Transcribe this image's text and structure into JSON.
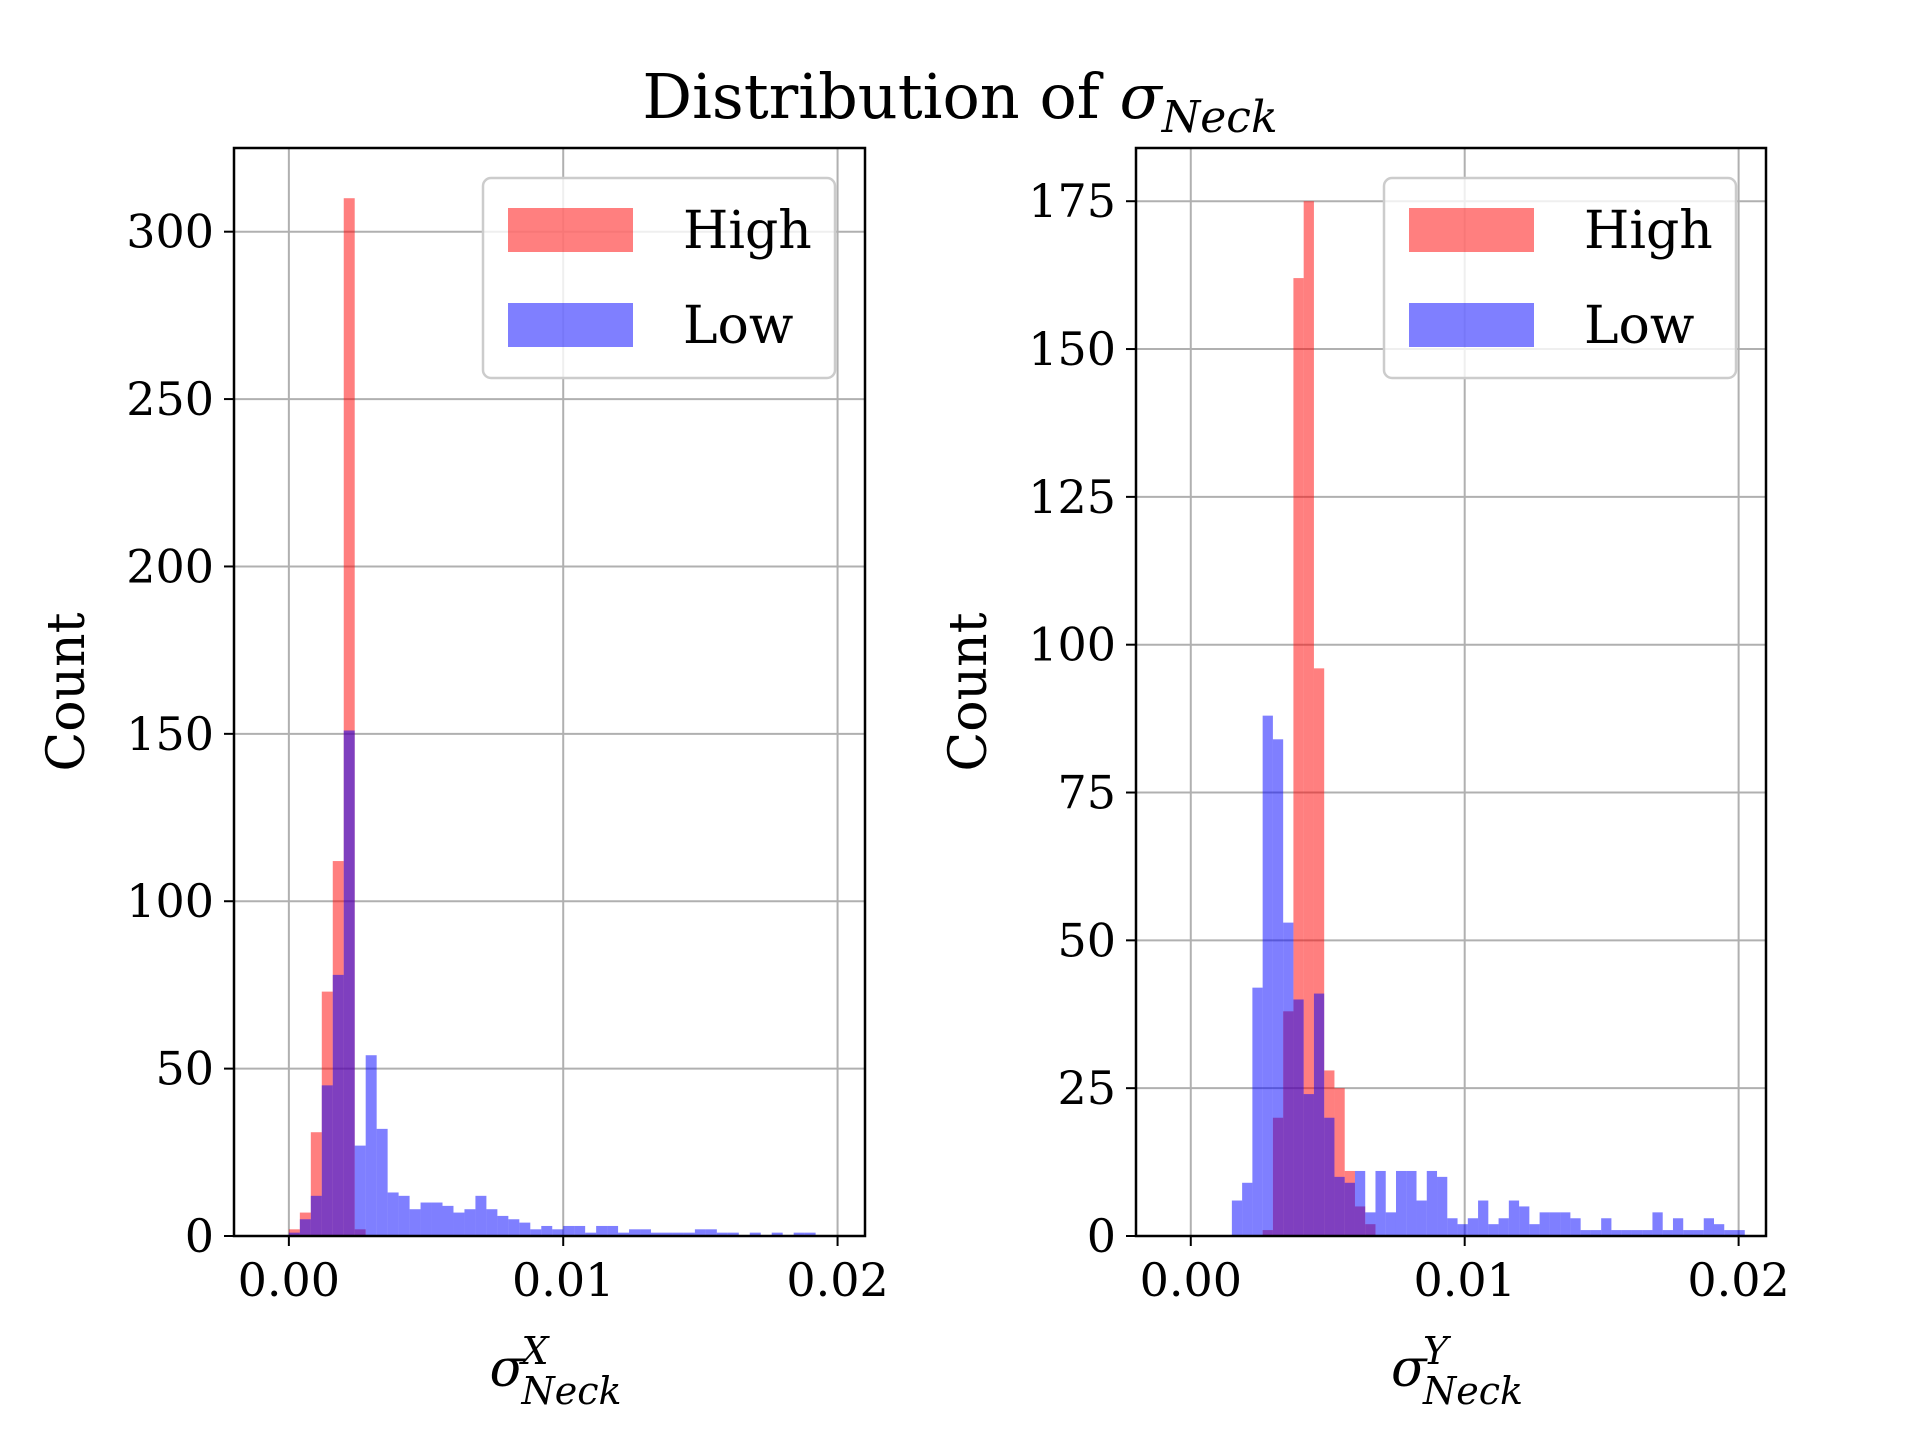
{
  "figure": {
    "title_prefix": "Distribution of ",
    "title_symbol": "σ",
    "title_subscript": "Neck"
  },
  "colors": {
    "high": "#ff0000",
    "low": "#0000ff",
    "bar_alpha": 0.5,
    "grid": "#b0b0b0"
  },
  "chart_data": [
    {
      "type": "bar",
      "subtype": "histogram",
      "title": "",
      "xlabel": "σ^X_Neck",
      "xlabel_symbol": "σ",
      "xlabel_sup": "X",
      "xlabel_sub": "Neck",
      "ylabel": "Count",
      "xlim": [
        -0.002,
        0.021
      ],
      "ylim": [
        0,
        325
      ],
      "xticks": [
        0.0,
        0.01,
        0.02
      ],
      "xtick_labels": [
        "0.00",
        "0.01",
        "0.02"
      ],
      "yticks": [
        0,
        50,
        100,
        150,
        200,
        250,
        300
      ],
      "ytick_labels": [
        "0",
        "50",
        "100",
        "150",
        "200",
        "250",
        "300"
      ],
      "grid": true,
      "legend": "upper right",
      "bin_edges_start": 0.0,
      "bin_width": 0.0004,
      "series": [
        {
          "name": "High",
          "values": [
            2,
            7,
            31,
            73,
            112,
            310,
            2,
            0,
            0,
            0,
            0,
            0,
            0,
            0,
            0,
            0,
            0,
            0,
            0,
            0,
            0,
            0,
            0,
            0,
            0,
            0,
            0,
            0,
            0,
            0,
            0,
            0,
            0,
            0,
            0,
            0,
            0,
            0,
            0,
            0,
            0,
            0,
            0,
            0,
            0,
            0,
            0,
            0,
            0,
            0
          ]
        },
        {
          "name": "Low",
          "values": [
            1,
            5,
            12,
            45,
            78,
            151,
            27,
            54,
            32,
            13,
            12,
            8,
            10,
            10,
            9,
            7,
            8,
            12,
            8,
            6,
            5,
            4,
            2,
            3,
            2,
            3,
            3,
            1,
            3,
            3,
            1,
            2,
            2,
            1,
            1,
            1,
            1,
            2,
            2,
            1,
            1,
            0,
            1,
            0,
            1,
            0,
            1,
            1,
            0,
            0
          ]
        }
      ]
    },
    {
      "type": "bar",
      "subtype": "histogram",
      "title": "",
      "xlabel": "σ^Y_Neck",
      "xlabel_symbol": "σ",
      "xlabel_sup": "Y",
      "xlabel_sub": "Neck",
      "ylabel": "Count",
      "xlim": [
        -0.002,
        0.021
      ],
      "ylim": [
        0,
        184
      ],
      "xticks": [
        0.0,
        0.01,
        0.02
      ],
      "xtick_labels": [
        "0.00",
        "0.01",
        "0.02"
      ],
      "yticks": [
        0,
        25,
        50,
        75,
        100,
        125,
        150,
        175
      ],
      "ytick_labels": [
        "0",
        "25",
        "50",
        "75",
        "100",
        "125",
        "150",
        "175"
      ],
      "grid": true,
      "legend": "upper right",
      "bin_edges_start": 0.0015,
      "bin_width": 0.0003745,
      "series": [
        {
          "name": "High",
          "values": [
            0,
            0,
            0,
            1,
            20,
            38,
            162,
            175,
            96,
            28,
            25,
            11,
            5,
            2,
            0,
            0,
            0,
            0,
            0,
            0,
            0,
            0,
            0,
            0,
            0,
            0,
            0,
            0,
            0,
            0,
            0,
            0,
            0,
            0,
            0,
            0,
            0,
            0,
            0,
            0,
            0,
            0,
            0,
            0,
            0,
            0,
            0,
            0,
            0,
            0
          ]
        },
        {
          "name": "Low",
          "values": [
            6,
            9,
            42,
            88,
            84,
            53,
            40,
            24,
            41,
            20,
            10,
            9,
            11,
            4,
            11,
            4,
            11,
            11,
            6,
            11,
            10,
            3,
            2,
            3,
            6,
            2,
            3,
            6,
            5,
            2,
            4,
            4,
            4,
            3,
            1,
            1,
            3,
            1,
            1,
            1,
            1,
            4,
            1,
            3,
            1,
            1,
            3,
            2,
            1,
            1
          ]
        }
      ]
    }
  ]
}
